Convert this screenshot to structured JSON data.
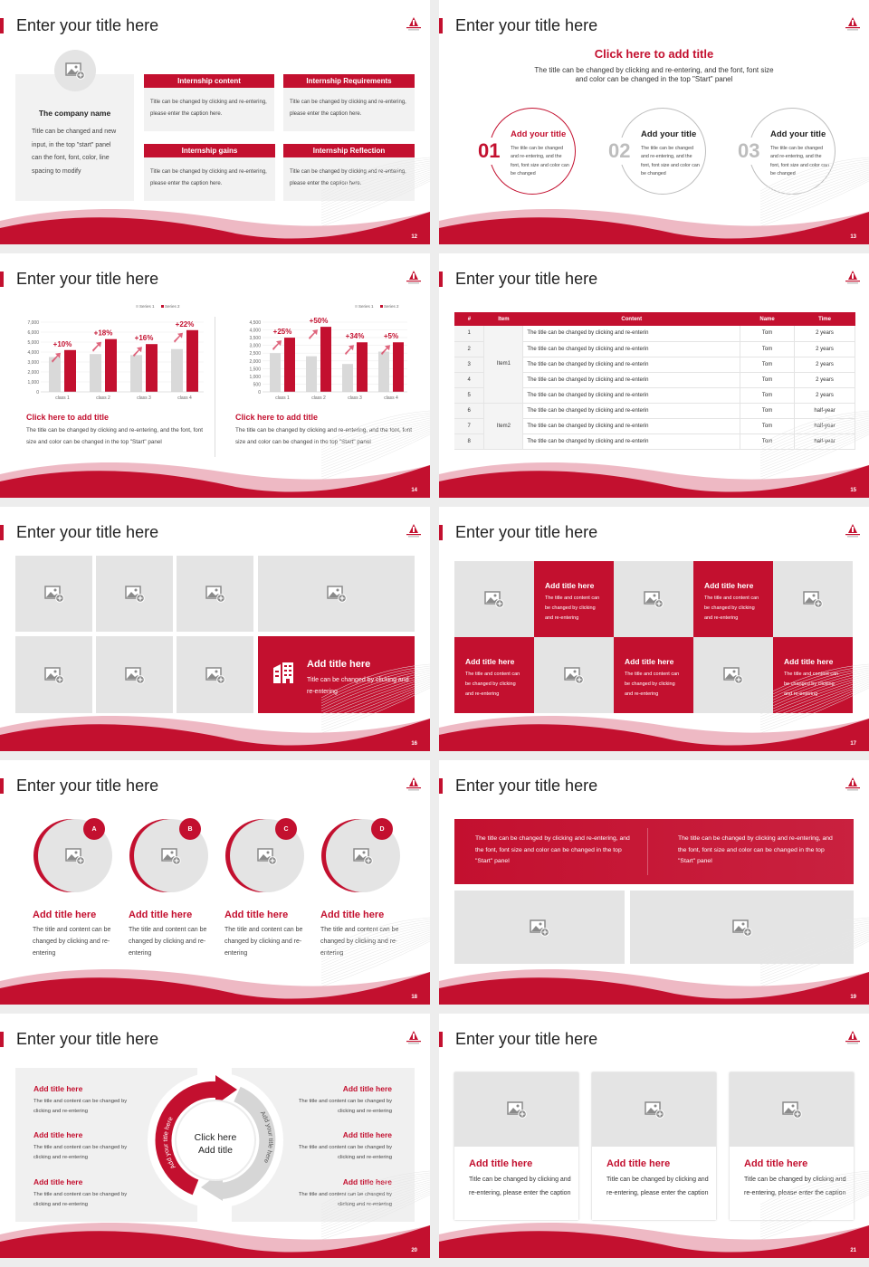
{
  "colors": {
    "accent": "#c3102f",
    "tile": "#e4e4e4",
    "panel": "#f2f2f2"
  },
  "icons": {
    "placeholder": "image-add-icon",
    "building": "building-icon",
    "logo": "school-logo"
  },
  "slides": {
    "s12": {
      "title": "Enter your title here",
      "page": "12",
      "company": {
        "name": "The company name",
        "desc": "Title can be changed and new input, in the top \"start\" panel can the font, font, color, line spacing to modify"
      },
      "boxes": [
        {
          "header": "Internship content",
          "body": "Title can be changed by clicking and re-entering, please enter the caption here."
        },
        {
          "header": "Internship Requirements",
          "body": "Title can be changed by clicking and re-entering, please enter the caption here."
        },
        {
          "header": "Internship gains",
          "body": "Title can be changed by clicking and re-entering, please enter the caption here."
        },
        {
          "header": "Internship Reflection",
          "body": "Title can be changed by clicking and re-entering, please enter the caption here."
        }
      ]
    },
    "s13": {
      "title": "Enter your title here",
      "page": "13",
      "heading": "Click here to add title",
      "desc": "The title can be changed by clicking and re-entering, and the font, font size and color can be changed in the top \"Start\" panel",
      "items": [
        {
          "num": "01",
          "title": "Add your title",
          "body": "The title can be changed and re-entering, and the font, font size and color can be changed"
        },
        {
          "num": "02",
          "title": "Add your title",
          "body": "The title can be changed and re-entering, and the font, font size and color can be changed"
        },
        {
          "num": "03",
          "title": "Add your title",
          "body": "The title can be changed and re-entering, and the font, font size and color can be changed"
        }
      ]
    },
    "s14": {
      "title": "Enter your title here",
      "page": "14",
      "texts": [
        {
          "title": "Click here to add title",
          "body": "The title can be changed by clicking and re-entering, and the font, font size and color can be changed in the top \"Start\" panel"
        },
        {
          "title": "Click here to add title",
          "body": "The title can be changed by clicking and re-entering, and the font, font size and color can be changed in the top \"Start\" panel"
        }
      ]
    },
    "s15": {
      "title": "Enter your title here",
      "page": "15",
      "columns": [
        "#",
        "Item",
        "Content",
        "Name",
        "Time"
      ],
      "groups": [
        {
          "item": "Item1",
          "rows": [
            {
              "num": "1",
              "content": "The title can be changed by clicking and re-enterin",
              "name": "Tom",
              "time": "2 years"
            },
            {
              "num": "2",
              "content": "The title can be changed by clicking and re-enterin",
              "name": "Tom",
              "time": "2 years"
            },
            {
              "num": "3",
              "content": "The title can be changed by clicking and re-enterin",
              "name": "Tom",
              "time": "2 years"
            },
            {
              "num": "4",
              "content": "The title can be changed by clicking and re-enterin",
              "name": "Tom",
              "time": "2 years"
            },
            {
              "num": "5",
              "content": "The title can be changed by clicking and re-enterin",
              "name": "Tom",
              "time": "2 years"
            }
          ]
        },
        {
          "item": "Item2",
          "rows": [
            {
              "num": "6",
              "content": "The title can be changed by clicking and re-enterin",
              "name": "Tom",
              "time": "half-year"
            },
            {
              "num": "7",
              "content": "The title can be changed by clicking and re-enterin",
              "name": "Tom",
              "time": "half-year"
            },
            {
              "num": "8",
              "content": "The title can be changed by clicking and re-enterin",
              "name": "Tom",
              "time": "half-year"
            }
          ]
        }
      ]
    },
    "s16": {
      "title": "Enter your title here",
      "page": "16",
      "feature": {
        "title": "Add title here",
        "body": "Title can be changed by clicking and re-entering"
      }
    },
    "s17": {
      "title": "Enter your title here",
      "page": "17",
      "cells": [
        {
          "type": "image"
        },
        {
          "type": "text",
          "title": "Add title here",
          "body": "The title and content can be changed by clicking and re-entering"
        },
        {
          "type": "image"
        },
        {
          "type": "text",
          "title": "Add title here",
          "body": "The title and content can be changed by clicking and re-entering"
        },
        {
          "type": "image"
        },
        {
          "type": "text",
          "title": "Add title here",
          "body": "The title and content can be changed by clicking and re-entering"
        },
        {
          "type": "image"
        },
        {
          "type": "text",
          "title": "Add title here",
          "body": "The title and content can be changed by clicking and re-entering"
        },
        {
          "type": "image"
        },
        {
          "type": "text",
          "title": "Add title here",
          "body": "The title and content can be changed by clicking and re-entering"
        }
      ]
    },
    "s18": {
      "title": "Enter your title here",
      "page": "18",
      "items": [
        {
          "badge": "A",
          "title": "Add title here",
          "body": "The title and content can be changed by clicking and re-entering"
        },
        {
          "badge": "B",
          "title": "Add title here",
          "body": "The title and content can be changed by clicking and re-entering"
        },
        {
          "badge": "C",
          "title": "Add title here",
          "body": "The title and content can be changed by clicking and re-entering"
        },
        {
          "badge": "D",
          "title": "Add title here",
          "body": "The title and content can be changed by clicking and re-entering"
        }
      ]
    },
    "s19": {
      "title": "Enter your title here",
      "page": "19",
      "texts": [
        "The title can be changed by clicking and re-entering, and the font, font size and color can be changed in the top \"Start\" panel",
        "The title can be changed by clicking and re-entering, and the font, font size and color can be changed in the top \"Start\" panel"
      ]
    },
    "s20": {
      "title": "Enter your title here",
      "page": "20",
      "center": [
        "Click here",
        "Add title"
      ],
      "arc_left": "Add your title here",
      "arc_right": "Add your title here",
      "left": [
        {
          "title": "Add title here",
          "body": "The title and content can be changed by clicking and re-entering"
        },
        {
          "title": "Add title here",
          "body": "The title and content can be changed by clicking and re-entering"
        },
        {
          "title": "Add title here",
          "body": "The title and content can be changed by clicking and re-entering"
        }
      ],
      "right": [
        {
          "title": "Add title here",
          "body": "The title and content can be changed by clicking and re-entering"
        },
        {
          "title": "Add title here",
          "body": "The title and content can be changed by clicking and re-entering"
        },
        {
          "title": "Add title here",
          "body": "The title and content can be changed by clicking and re-entering"
        }
      ]
    },
    "s21": {
      "title": "Enter your title here",
      "page": "21",
      "cards": [
        {
          "title": "Add title here",
          "body": "Title can be changed by clicking and re-entering, please enter the caption"
        },
        {
          "title": "Add title here",
          "body": "Title can be changed by clicking and re-entering, please enter the caption"
        },
        {
          "title": "Add title here",
          "body": "Title can be changed by clicking and re-entering, please enter the caption"
        }
      ]
    }
  },
  "chart_data": [
    {
      "type": "bar",
      "categories": [
        "class 1",
        "class 2",
        "class 3",
        "class 4"
      ],
      "ylim": [
        0,
        7000
      ],
      "yticks": [
        "0",
        "1,000",
        "2,000",
        "3,000",
        "4,000",
        "5,000",
        "6,000",
        "7,000"
      ],
      "legend": "top-right",
      "grid": true,
      "series": [
        {
          "name": "Series 1",
          "color": "#d9d9d9",
          "values": [
            3500,
            3800,
            3700,
            4300
          ]
        },
        {
          "name": "Series 2",
          "color": "#c3102f",
          "values": [
            4200,
            5300,
            4800,
            6200
          ]
        }
      ],
      "annotations": [
        "+10%",
        "+18%",
        "+16%",
        "+22%"
      ]
    },
    {
      "type": "bar",
      "categories": [
        "class 1",
        "class 2",
        "class 3",
        "class 4"
      ],
      "ylim": [
        0,
        4500
      ],
      "yticks": [
        "0",
        "500",
        "1,000",
        "1,500",
        "2,000",
        "2,500",
        "3,000",
        "3,500",
        "4,000",
        "4,500"
      ],
      "legend": "top-right",
      "grid": true,
      "series": [
        {
          "name": "Series 1",
          "color": "#d9d9d9",
          "values": [
            2500,
            2300,
            1800,
            2600
          ]
        },
        {
          "name": "Series 2",
          "color": "#c3102f",
          "values": [
            3500,
            4200,
            3200,
            3200
          ]
        }
      ],
      "annotations": [
        "+25%",
        "+50%",
        "+34%",
        "+5%"
      ]
    }
  ]
}
